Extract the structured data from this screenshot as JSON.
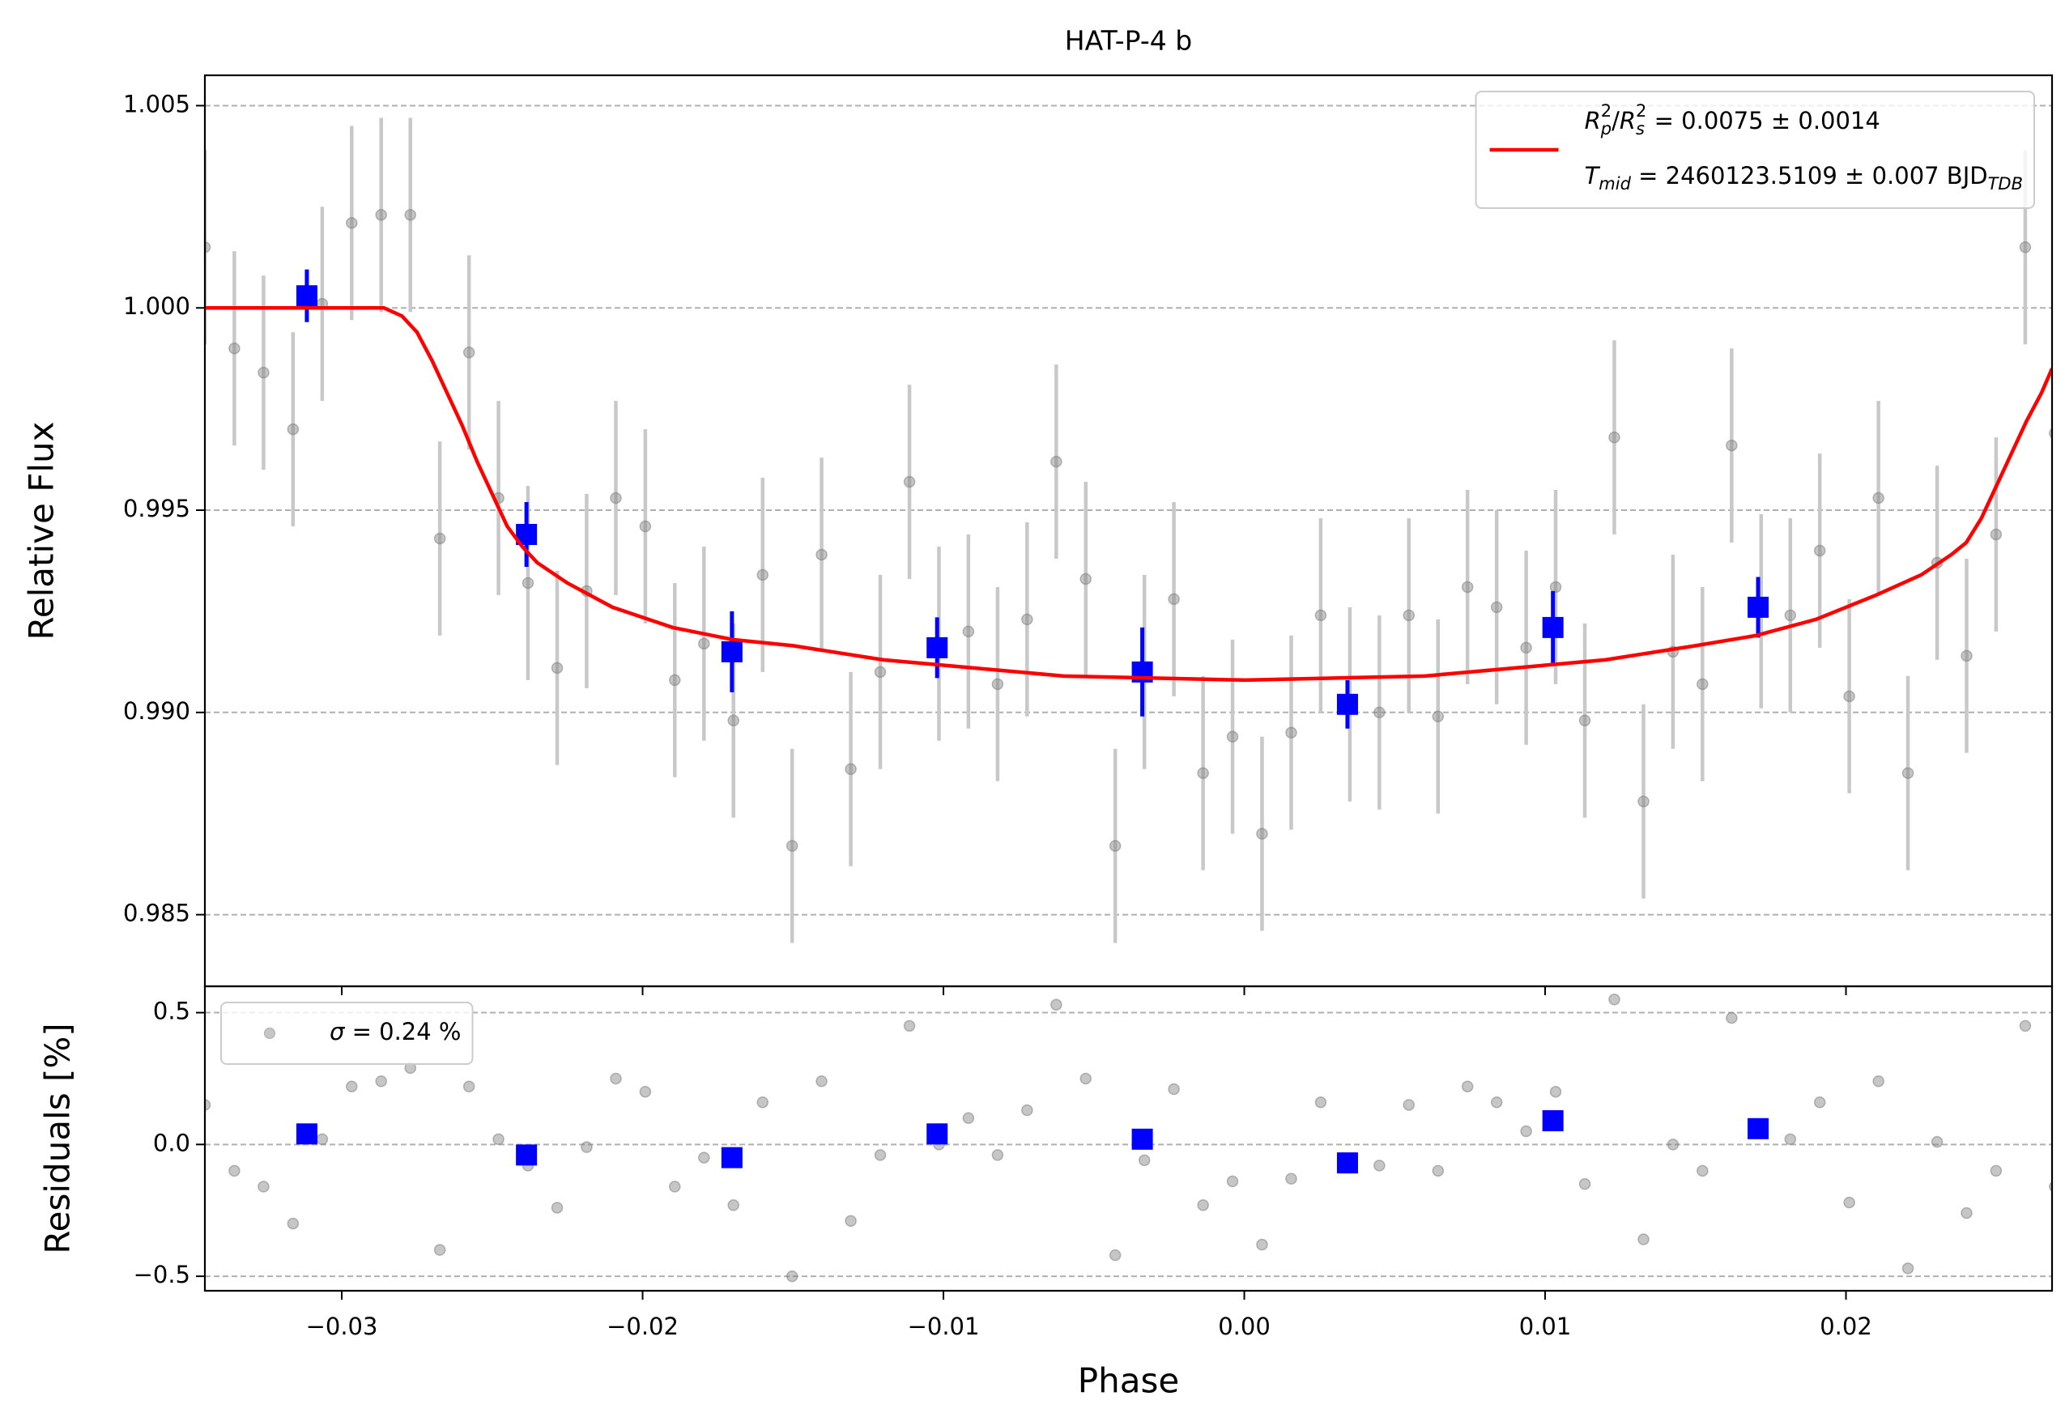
{
  "chart_data": [
    {
      "type": "scatter",
      "title": "HAT-P-4 b",
      "ylabel": "Relative Flux",
      "xlim": [
        -0.03455,
        0.02685
      ],
      "ylim": [
        0.98323,
        1.00575
      ],
      "xticks": [
        -0.03,
        -0.02,
        -0.01,
        0,
        0.01,
        0.02
      ],
      "yticks": [
        0.985,
        {
          "value": 0.99,
          "label": "0.990"
        },
        0.995,
        {
          "value": 1.0,
          "label": "1.000"
        },
        1.005
      ],
      "grid": true,
      "legend": "upper right",
      "series": [
        {
          "marker": "circle",
          "color": "#808080",
          "ecolor": "#c8c8c8",
          "yerr": 0.0024,
          "x": [
            -0.03455,
            -0.03357,
            -0.0326,
            -0.03162,
            -0.03065,
            -0.02967,
            -0.02869,
            -0.02772,
            -0.02674,
            -0.02577,
            -0.02479,
            -0.02381,
            -0.02284,
            -0.02186,
            -0.02089,
            -0.01991,
            -0.01893,
            -0.01796,
            -0.01698,
            -0.01601,
            -0.01503,
            -0.01405,
            -0.01308,
            -0.0121,
            -0.01113,
            -0.01015,
            -0.00917,
            -0.0082,
            -0.00722,
            -0.00625,
            -0.00527,
            -0.00429,
            -0.00332,
            -0.00234,
            -0.00137,
            -0.00039,
            0.00059,
            0.00156,
            0.00254,
            0.00351,
            0.00449,
            0.00547,
            0.00644,
            0.00742,
            0.00839,
            0.00937,
            0.01035,
            0.01132,
            0.0123,
            0.01327,
            0.01425,
            0.01523,
            0.0162,
            0.01718,
            0.01815,
            0.01913,
            0.02011,
            0.02108,
            0.02206,
            0.02303,
            0.02401,
            0.02499,
            0.02596,
            0.02694
          ],
          "values": [
            1.0015,
            0.999,
            0.9984,
            0.997,
            1.0001,
            1.0021,
            1.0023,
            1.0023,
            0.9943,
            0.9989,
            0.9953,
            0.9932,
            0.9911,
            0.993,
            0.9953,
            0.9946,
            0.9908,
            0.9917,
            0.9898,
            0.9934,
            0.9867,
            0.9939,
            0.9886,
            0.991,
            0.9957,
            0.9917,
            0.992,
            0.9907,
            0.9923,
            0.9962,
            0.9933,
            0.9867,
            0.991,
            0.9928,
            0.9885,
            0.9894,
            0.987,
            0.9895,
            0.9924,
            0.9902,
            0.99,
            0.9924,
            0.9899,
            0.9931,
            0.9926,
            0.9916,
            0.9931,
            0.9898,
            0.9968,
            0.9878,
            0.9915,
            0.9907,
            0.9966,
            0.9925,
            0.9924,
            0.994,
            0.9904,
            0.9953,
            0.9885,
            0.9937,
            0.9914,
            0.9944,
            1.0015,
            0.9969
          ]
        },
        {
          "marker": "square",
          "color": "#0000ff",
          "ecolor": "#0000ff",
          "x": [
            -0.03116,
            -0.02386,
            -0.01703,
            -0.01021,
            -0.00339,
            0.00343,
            0.01026,
            0.01708
          ],
          "values": [
            1.0003,
            0.9944,
            0.9915,
            0.9916,
            0.991,
            0.9902,
            0.9921,
            0.9926
          ],
          "yerr": [
            0.00065,
            0.0008,
            0.001,
            0.00075,
            0.0011,
            0.0006,
            0.0009,
            0.00075
          ]
        },
        {
          "marker": "line",
          "color": "#ff0000",
          "name": [
            [
              {
                "text": "R",
                "italic": true
              },
              {
                "text": "p",
                "italic": true,
                "shift": "sub"
              },
              {
                "text": "2",
                "shift": "sup"
              },
              {
                "text": "/"
              },
              {
                "text": "R",
                "italic": true
              },
              {
                "text": "s",
                "italic": true,
                "shift": "sub"
              },
              {
                "text": "2",
                "shift": "sup"
              },
              {
                "text": " = 0.0075 ± 0.0014"
              }
            ],
            [
              {
                "text": "T",
                "italic": true
              },
              {
                "text": "mid",
                "italic": true,
                "shift": "sub"
              },
              {
                "text": " = 2460123.5109 ± 0.007 BJD"
              },
              {
                "text": "TDB",
                "italic": true,
                "shift": "sub"
              }
            ]
          ],
          "x": [
            -0.03455,
            -0.0286,
            -0.028,
            -0.0275,
            -0.027,
            -0.0265,
            -0.026,
            -0.0255,
            -0.025,
            -0.0245,
            -0.024,
            -0.0235,
            -0.0225,
            -0.021,
            -0.019,
            -0.017,
            -0.015,
            -0.012,
            -0.009,
            -0.006,
            -0.003,
            0,
            0.003,
            0.006,
            0.009,
            0.012,
            0.015,
            0.017,
            0.019,
            0.021,
            0.0225,
            0.0235,
            0.024,
            0.0245,
            0.025,
            0.0255,
            0.026,
            0.0265,
            0.02685
          ],
          "values": [
            1.0,
            1.0,
            0.9998,
            0.9994,
            0.9987,
            0.9979,
            0.9971,
            0.9962,
            0.9954,
            0.9946,
            0.9941,
            0.9937,
            0.9932,
            0.9926,
            0.9921,
            0.9918,
            0.99165,
            0.9913,
            0.9911,
            0.9909,
            0.99085,
            0.9908,
            0.99085,
            0.9909,
            0.9911,
            0.9913,
            0.99165,
            0.9919,
            0.9923,
            0.9929,
            0.9934,
            0.9939,
            0.9942,
            0.9948,
            0.9956,
            0.9964,
            0.9972,
            0.9979,
            0.9985
          ]
        }
      ]
    },
    {
      "type": "scatter",
      "xlabel": "Phase",
      "ylabel": "Residuals [%]",
      "xlim": [
        -0.03455,
        0.02685
      ],
      "ylim": [
        -0.555,
        0.6
      ],
      "xticks": [
        {
          "value": -0.03,
          "label": "−0.03"
        },
        {
          "value": -0.02,
          "label": "−0.02"
        },
        {
          "value": -0.01,
          "label": "−0.01"
        },
        {
          "value": 0,
          "label": "0.00"
        },
        0.01,
        0.02
      ],
      "yticks": [
        {
          "value": -0.5,
          "label": "−0.5"
        },
        {
          "value": 0,
          "label": "0.0"
        },
        0.5
      ],
      "grid": true,
      "legend": "upper left",
      "series": [
        {
          "marker": "circle",
          "color": "#808080",
          "name": [
            [
              {
                "text": "σ",
                "italic": true
              },
              {
                "text": " = 0.24 %"
              }
            ]
          ],
          "x": [
            -0.03455,
            -0.03357,
            -0.0326,
            -0.03162,
            -0.03065,
            -0.02967,
            -0.02869,
            -0.02772,
            -0.02674,
            -0.02577,
            -0.02479,
            -0.02381,
            -0.02284,
            -0.02186,
            -0.02089,
            -0.01991,
            -0.01893,
            -0.01796,
            -0.01698,
            -0.01601,
            -0.01503,
            -0.01405,
            -0.01308,
            -0.0121,
            -0.01113,
            -0.01015,
            -0.00917,
            -0.0082,
            -0.00722,
            -0.00625,
            -0.00527,
            -0.00429,
            -0.00332,
            -0.00234,
            -0.00137,
            -0.00039,
            0.00059,
            0.00156,
            0.00254,
            0.00351,
            0.00449,
            0.00547,
            0.00644,
            0.00742,
            0.00839,
            0.00937,
            0.01035,
            0.01132,
            0.0123,
            0.01327,
            0.01425,
            0.01523,
            0.0162,
            0.01718,
            0.01815,
            0.01913,
            0.02011,
            0.02108,
            0.02206,
            0.02303,
            0.02401,
            0.02499,
            0.02596,
            0.02694
          ],
          "values": [
            0.15,
            -0.1,
            -0.16,
            -0.3,
            0.02,
            0.22,
            0.24,
            0.29,
            -0.4,
            0.22,
            0.02,
            -0.08,
            -0.24,
            -0.01,
            0.25,
            0.2,
            -0.16,
            -0.05,
            -0.23,
            0.16,
            -0.5,
            0.24,
            -0.29,
            -0.04,
            0.45,
            0,
            0.1,
            -0.04,
            0.13,
            0.53,
            0.25,
            -0.42,
            -0.06,
            0.21,
            -0.23,
            -0.14,
            -0.38,
            -0.13,
            0.16,
            -0.07,
            -0.08,
            0.15,
            -0.1,
            0.22,
            0.16,
            0.05,
            0.2,
            -0.15,
            0.55,
            -0.36,
            0,
            -0.1,
            0.48,
            0.06,
            0.02,
            0.16,
            -0.22,
            0.24,
            -0.47,
            0.01,
            -0.26,
            -0.1,
            0.45,
            -0.16
          ]
        },
        {
          "marker": "square",
          "color": "#0000ff",
          "x": [
            -0.03116,
            -0.02386,
            -0.01703,
            -0.01021,
            -0.00339,
            0.00343,
            0.01026,
            0.01708
          ],
          "values": [
            0.04,
            -0.04,
            -0.05,
            0.04,
            0.02,
            -0.07,
            0.09,
            0.06
          ]
        }
      ]
    }
  ]
}
